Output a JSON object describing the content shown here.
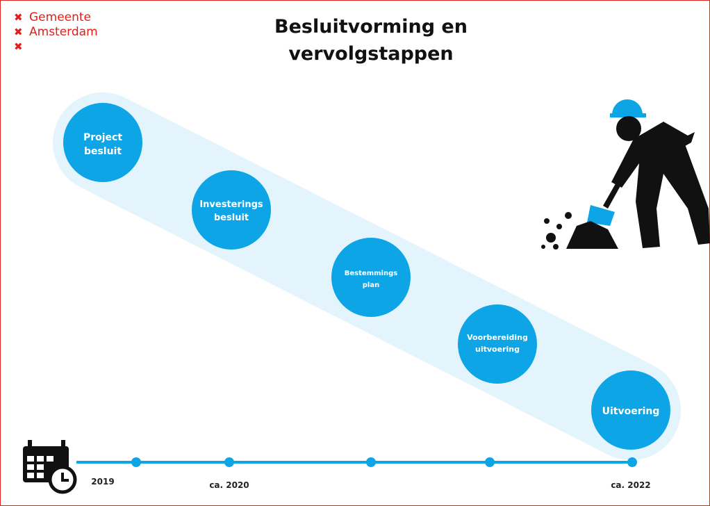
{
  "logo": {
    "lines": [
      "Gemeente",
      "Amsterdam"
    ]
  },
  "title": {
    "lines": [
      "Besluitvorming en",
      "vervolgstappen"
    ]
  },
  "steps": [
    {
      "lines": [
        "Project",
        "besluit"
      ]
    },
    {
      "lines": [
        "Investerings",
        "besluit"
      ]
    },
    {
      "lines": [
        "Bestemmings",
        "plan"
      ]
    },
    {
      "lines": [
        "Voorbereiding",
        "uitvoering"
      ]
    },
    {
      "lines": [
        "Uitvoering"
      ]
    }
  ],
  "timeline": {
    "labels": [
      "2019",
      "ca. 2020",
      "ca. 2022"
    ]
  }
}
